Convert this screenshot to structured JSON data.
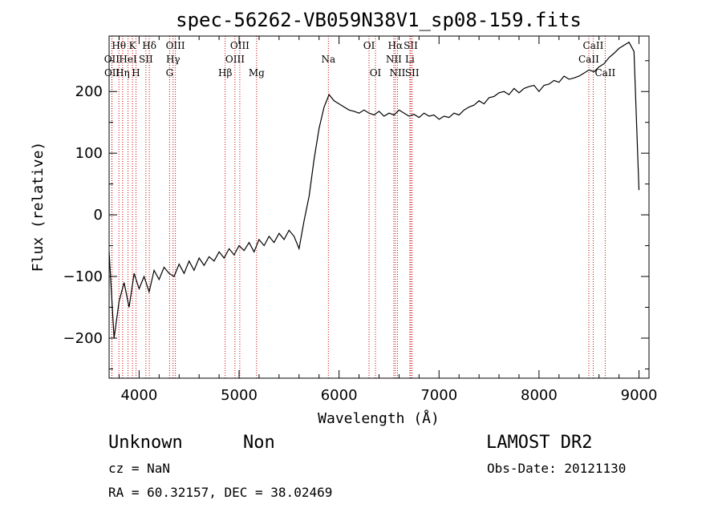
{
  "chart_data": {
    "type": "line",
    "title": "spec-56262-VB059N38V1_sp08-159.fits",
    "xlabel": "Wavelength (Å)",
    "ylabel": "Flux (relative)",
    "xlim": [
      3700,
      9100
    ],
    "ylim": [
      -265,
      290
    ],
    "x_ticks": [
      4000,
      5000,
      6000,
      7000,
      8000,
      9000
    ],
    "y_ticks": [
      -200,
      -100,
      0,
      100,
      200
    ],
    "grid": false,
    "series": [
      {
        "color": "#000000",
        "x": [
          3700,
          3750,
          3800,
          3850,
          3900,
          3950,
          4000,
          4050,
          4100,
          4150,
          4200,
          4250,
          4300,
          4350,
          4400,
          4450,
          4500,
          4550,
          4600,
          4650,
          4700,
          4750,
          4800,
          4850,
          4900,
          4950,
          5000,
          5050,
          5100,
          5150,
          5200,
          5250,
          5300,
          5350,
          5400,
          5450,
          5500,
          5550,
          5600,
          5650,
          5700,
          5750,
          5800,
          5850,
          5900,
          5950,
          6000,
          6050,
          6100,
          6150,
          6200,
          6250,
          6300,
          6350,
          6400,
          6450,
          6500,
          6550,
          6600,
          6650,
          6700,
          6750,
          6800,
          6850,
          6900,
          6950,
          7000,
          7050,
          7100,
          7150,
          7200,
          7250,
          7300,
          7350,
          7400,
          7450,
          7500,
          7550,
          7600,
          7650,
          7700,
          7750,
          7800,
          7850,
          7900,
          7950,
          8000,
          8050,
          8100,
          8150,
          8200,
          8250,
          8300,
          8350,
          8400,
          8450,
          8500,
          8550,
          8600,
          8650,
          8700,
          8750,
          8800,
          8850,
          8900,
          8950,
          9000
        ],
        "y": [
          -60,
          -200,
          -140,
          -110,
          -150,
          -95,
          -120,
          -100,
          -125,
          -90,
          -105,
          -85,
          -95,
          -100,
          -80,
          -95,
          -75,
          -90,
          -70,
          -82,
          -68,
          -75,
          -60,
          -70,
          -55,
          -65,
          -50,
          -58,
          -45,
          -60,
          -40,
          -50,
          -35,
          -45,
          -30,
          -40,
          -25,
          -35,
          -55,
          -10,
          30,
          90,
          140,
          175,
          195,
          185,
          180,
          175,
          170,
          168,
          165,
          170,
          165,
          162,
          168,
          160,
          165,
          162,
          170,
          165,
          160,
          163,
          158,
          165,
          160,
          162,
          155,
          160,
          158,
          165,
          162,
          170,
          175,
          178,
          185,
          180,
          190,
          192,
          198,
          200,
          195,
          205,
          198,
          205,
          208,
          210,
          200,
          210,
          212,
          218,
          215,
          225,
          220,
          222,
          225,
          230,
          235,
          232,
          240,
          245,
          255,
          262,
          270,
          275,
          280,
          265,
          40
        ]
      }
    ],
    "line_markers": [
      {
        "label": "Hθ",
        "x": 3798,
        "row": 1
      },
      {
        "label": "OII",
        "x": 3727,
        "row": 2
      },
      {
        "label": "OII",
        "x": 3729,
        "row": 3
      },
      {
        "label": "K",
        "x": 3934,
        "row": 1
      },
      {
        "label": "HeI",
        "x": 3889,
        "row": 2
      },
      {
        "label": "Hη",
        "x": 3835,
        "row": 3
      },
      {
        "label": "Hδ",
        "x": 4102,
        "row": 1
      },
      {
        "label": "SII",
        "x": 4068,
        "row": 2
      },
      {
        "label": "H",
        "x": 3969,
        "row": 3
      },
      {
        "label": "OIII",
        "x": 4363,
        "row": 1
      },
      {
        "label": "Hγ",
        "x": 4340,
        "row": 2
      },
      {
        "label": "G",
        "x": 4305,
        "row": 3
      },
      {
        "label": "OIII",
        "x": 5007,
        "row": 1
      },
      {
        "label": "OIII",
        "x": 4959,
        "row": 2
      },
      {
        "label": "Hβ",
        "x": 4861,
        "row": 3
      },
      {
        "label": "Mg",
        "x": 5175,
        "row": 3
      },
      {
        "label": "Na",
        "x": 5893,
        "row": 2
      },
      {
        "label": "OI",
        "x": 6300,
        "row": 1
      },
      {
        "label": "OI",
        "x": 6364,
        "row": 3
      },
      {
        "label": "Hα",
        "x": 6563,
        "row": 1
      },
      {
        "label": "NII",
        "x": 6548,
        "row": 2
      },
      {
        "label": "NII",
        "x": 6584,
        "row": 3
      },
      {
        "label": "SII",
        "x": 6717,
        "row": 1
      },
      {
        "label": "Li",
        "x": 6708,
        "row": 2
      },
      {
        "label": "SII",
        "x": 6731,
        "row": 3
      },
      {
        "label": "CaII",
        "x": 8542,
        "row": 1
      },
      {
        "label": "CaII",
        "x": 8498,
        "row": 2
      },
      {
        "label": "CaII",
        "x": 8662,
        "row": 3
      }
    ]
  },
  "info": {
    "class_label": "Unknown",
    "subclass_label": "Non",
    "survey": "LAMOST DR2",
    "cz": "cz = NaN",
    "obs_date": "Obs-Date: 20121130",
    "radec": "RA =  60.32157, DEC =  38.02469"
  }
}
